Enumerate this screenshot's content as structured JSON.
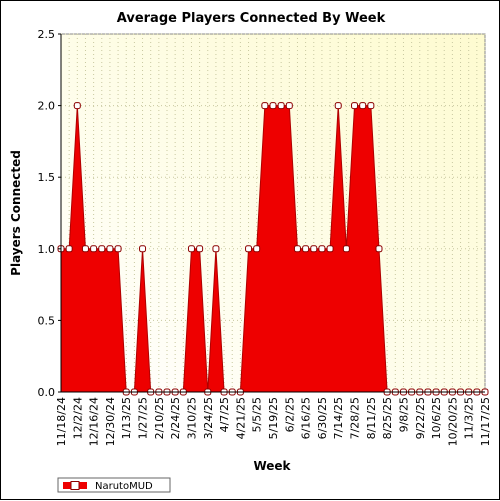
{
  "chart_data": {
    "type": "area",
    "title": "Average Players Connected By Week",
    "xlabel": "Week",
    "ylabel": "Players Connected",
    "ylim": [
      0,
      2.5
    ],
    "y_ticks": [
      "0.0",
      "0.5",
      "1.0",
      "1.5",
      "2.0",
      "2.5"
    ],
    "x_tick_labels": [
      "11/18/24",
      "12/2/24",
      "12/16/24",
      "12/30/24",
      "1/13/25",
      "1/27/25",
      "2/10/25",
      "2/24/25",
      "3/10/25",
      "3/24/25",
      "4/7/25",
      "4/21/25",
      "5/5/25",
      "5/19/25",
      "6/2/25",
      "6/16/25",
      "6/30/25",
      "7/14/25",
      "7/28/25",
      "8/11/25",
      "8/25/25",
      "9/8/25",
      "9/22/25",
      "10/6/25",
      "10/20/25",
      "11/3/25",
      "11/17/25"
    ],
    "grid": true,
    "legend_position": "bottom-left",
    "series": [
      {
        "name": "NarutoMUD",
        "color": "#ee0000",
        "x": [
          "11/18/24",
          "11/25/24",
          "12/2/24",
          "12/9/24",
          "12/16/24",
          "12/23/24",
          "12/30/24",
          "1/6/25",
          "1/13/25",
          "1/20/25",
          "1/27/25",
          "2/3/25",
          "2/10/25",
          "2/17/25",
          "2/24/25",
          "3/3/25",
          "3/10/25",
          "3/17/25",
          "3/24/25",
          "3/31/25",
          "4/7/25",
          "4/14/25",
          "4/21/25",
          "4/28/25",
          "5/5/25",
          "5/12/25",
          "5/19/25",
          "5/26/25",
          "6/2/25",
          "6/9/25",
          "6/16/25",
          "6/23/25",
          "6/30/25",
          "7/7/25",
          "7/14/25",
          "7/21/25",
          "7/28/25",
          "8/4/25",
          "8/11/25",
          "8/18/25",
          "8/25/25",
          "9/1/25",
          "9/8/25",
          "9/15/25",
          "9/22/25",
          "9/29/25",
          "10/6/25",
          "10/13/25",
          "10/20/25",
          "10/27/25",
          "11/3/25",
          "11/10/25",
          "11/17/25"
        ],
        "values": [
          1,
          1,
          2,
          1,
          1,
          1,
          1,
          1,
          0,
          0,
          1,
          0,
          0,
          0,
          0,
          0,
          1,
          1,
          0,
          1,
          0,
          0,
          0,
          1,
          1,
          2,
          2,
          2,
          2,
          1,
          1,
          1,
          1,
          1,
          2,
          1,
          2,
          2,
          2,
          1,
          0,
          0,
          0,
          0,
          0,
          0,
          0,
          0,
          0,
          0,
          0,
          0,
          0
        ]
      }
    ]
  }
}
